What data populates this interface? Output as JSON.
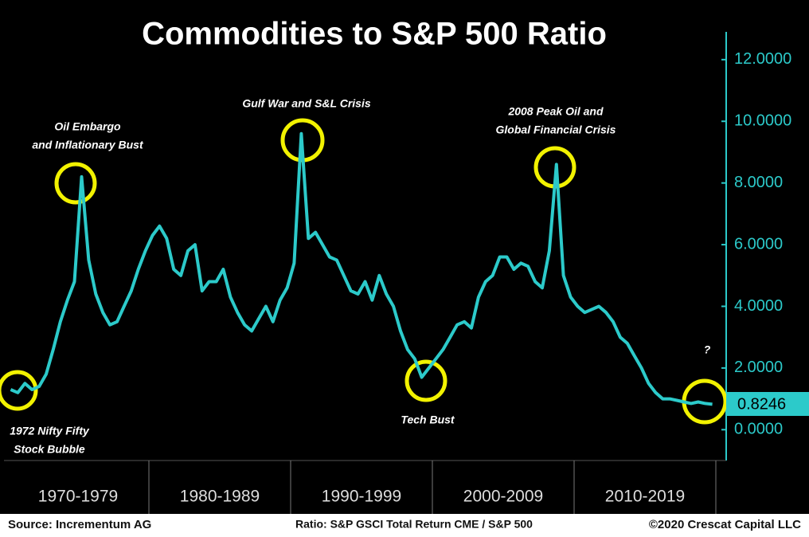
{
  "chart_data": {
    "type": "line",
    "title": "Commodities to S&P 500 Ratio",
    "categories": [
      null,
      null,
      null,
      null,
      null,
      null,
      null,
      null,
      null,
      null,
      "1970-1979",
      null,
      null,
      null,
      null,
      null,
      null,
      null,
      null,
      null,
      null,
      null,
      null,
      null,
      null,
      null,
      null,
      null,
      null,
      null,
      "1980-1989",
      null,
      null,
      null,
      null,
      null,
      null,
      null,
      null,
      null,
      null,
      null,
      null,
      null,
      null,
      null,
      null,
      null,
      null,
      null,
      "1990-1999",
      null,
      null,
      null,
      null,
      null,
      null,
      null,
      null,
      null,
      null,
      null,
      null,
      null,
      null,
      null,
      null,
      null,
      null,
      null,
      "2000-2009",
      null,
      null,
      null,
      null,
      null,
      null,
      null,
      null,
      null,
      null,
      null,
      null,
      null,
      null,
      null,
      null,
      null,
      null,
      null,
      "2010-2019",
      null,
      null,
      null,
      null,
      null,
      null,
      null,
      null,
      null
    ],
    "series": [
      {
        "name": "Ratio: S&P GSCI Total Return CME / S&P 500",
        "color": "#2ccaca",
        "values": [
          1.3,
          1.2,
          1.5,
          1.3,
          1.4,
          1.8,
          2.6,
          3.5,
          4.2,
          4.8,
          8.2,
          5.5,
          4.4,
          3.8,
          3.4,
          3.5,
          4.0,
          4.5,
          5.2,
          5.8,
          6.3,
          6.6,
          6.2,
          5.2,
          5.0,
          5.8,
          6.0,
          4.5,
          4.8,
          4.8,
          5.2,
          4.3,
          3.8,
          3.4,
          3.2,
          3.6,
          4.0,
          3.5,
          4.2,
          4.6,
          5.4,
          9.6,
          6.2,
          6.4,
          6.0,
          5.6,
          5.5,
          5.0,
          4.5,
          4.4,
          4.8,
          4.2,
          5.0,
          4.4,
          4.0,
          3.2,
          2.6,
          2.3,
          1.7,
          2.0,
          2.3,
          2.6,
          3.0,
          3.4,
          3.5,
          3.3,
          4.3,
          4.8,
          5.0,
          5.6,
          5.6,
          5.2,
          5.4,
          5.3,
          4.8,
          4.6,
          5.8,
          8.6,
          5.0,
          4.3,
          4.0,
          3.8,
          3.9,
          4.0,
          3.8,
          3.5,
          3.0,
          2.8,
          2.4,
          2.0,
          1.5,
          1.2,
          1.0,
          1.0,
          0.95,
          0.9,
          0.85,
          0.9,
          0.85,
          0.8246
        ]
      }
    ],
    "ylim": [
      -1.0,
      12.9
    ],
    "yticks": [
      {
        "value": 0,
        "label": "0.0000"
      },
      {
        "value": 2,
        "label": "2.0000"
      },
      {
        "value": 4,
        "label": "4.0000"
      },
      {
        "value": 6,
        "label": "6.0000"
      },
      {
        "value": 8,
        "label": "8.0000"
      },
      {
        "value": 10,
        "label": "10.0000"
      },
      {
        "value": 12,
        "label": "12.0000"
      }
    ],
    "annotations": [
      {
        "lines": [
          "1972 Nifty Fifty",
          "Stock Bubble"
        ]
      },
      {
        "lines": [
          "Oil Embargo",
          "and Inflationary Bust"
        ]
      },
      {
        "lines": [
          "Gulf War and S&L Crisis"
        ]
      },
      {
        "lines": [
          "Tech Bust"
        ]
      },
      {
        "lines": [
          "2008 Peak Oil and",
          "Global Financial Crisis"
        ]
      },
      {
        "lines": [
          "?"
        ]
      }
    ],
    "source": "Source: Incrementum AG",
    "note": "Ratio: S&P GSCI Total Return CME / S&P 500",
    "copyright": "©2020 Crescat Capital LLC"
  }
}
